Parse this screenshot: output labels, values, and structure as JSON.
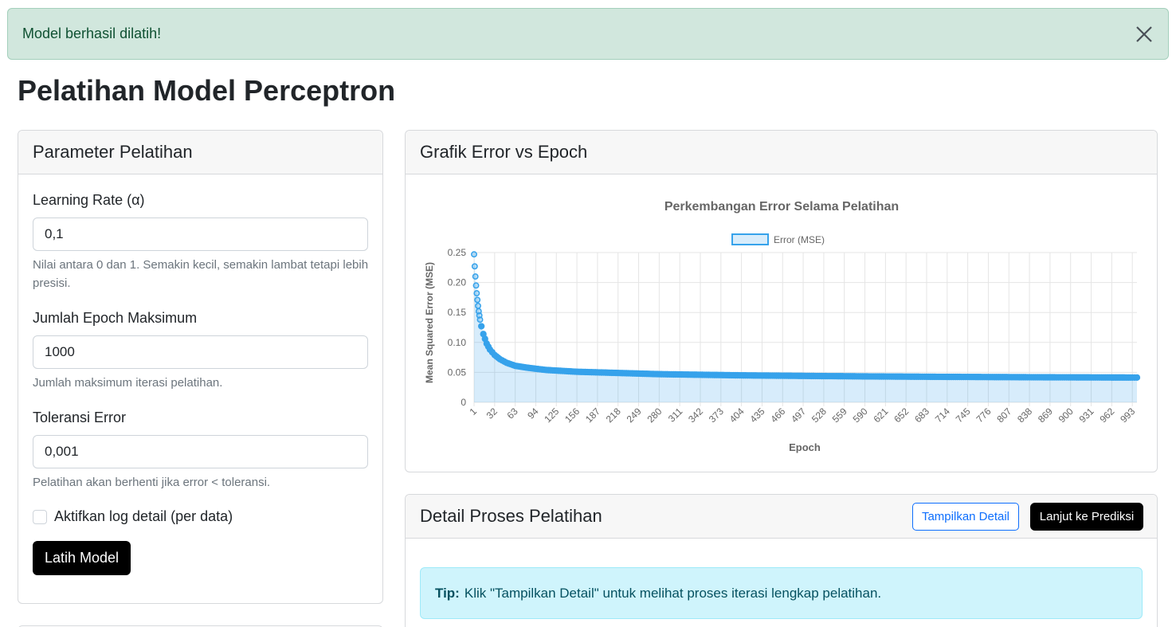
{
  "alert": {
    "message": "Model berhasil dilatih!",
    "close_icon": "close-icon"
  },
  "page": {
    "title": "Pelatihan Model Perceptron"
  },
  "params": {
    "header": "Parameter Pelatihan",
    "learning_rate": {
      "label": "Learning Rate (α)",
      "value": "0,1",
      "help": "Nilai antara 0 dan 1. Semakin kecil, semakin lambat tetapi lebih presisi."
    },
    "max_epoch": {
      "label": "Jumlah Epoch Maksimum",
      "value": "1000",
      "help": "Jumlah maksimum iterasi pelatihan."
    },
    "tolerance": {
      "label": "Toleransi Error",
      "value": "0,001",
      "help": "Pelatihan akan berhenti jika error < toleransi."
    },
    "log_checkbox": {
      "label": "Aktifkan log detail (per data)",
      "checked": false
    },
    "train_button": "Latih Model"
  },
  "chart_card": {
    "header": "Grafik Error vs Epoch"
  },
  "chart_data": {
    "type": "line",
    "title": "Perkembangan Error Selama Pelatihan",
    "xlabel": "Epoch",
    "ylabel": "Mean Squared Error (MSE)",
    "legend": {
      "label": "Error (MSE)",
      "position": "top"
    },
    "series": [
      {
        "name": "Error (MSE)",
        "color": "#36a2eb",
        "fill": "rgba(54,162,235,0.2)",
        "points": [
          [
            1,
            0.247
          ],
          [
            2,
            0.227
          ],
          [
            3,
            0.21
          ],
          [
            4,
            0.195
          ],
          [
            5,
            0.182
          ],
          [
            6,
            0.171
          ],
          [
            7,
            0.161
          ],
          [
            8,
            0.152
          ],
          [
            9,
            0.145
          ],
          [
            10,
            0.138
          ],
          [
            12,
            0.127
          ],
          [
            15,
            0.114
          ],
          [
            20,
            0.098
          ],
          [
            25,
            0.088
          ],
          [
            32,
            0.079
          ],
          [
            40,
            0.072
          ],
          [
            50,
            0.066
          ],
          [
            63,
            0.061
          ],
          [
            80,
            0.058
          ],
          [
            94,
            0.056
          ],
          [
            110,
            0.054
          ],
          [
            125,
            0.053
          ],
          [
            156,
            0.051
          ],
          [
            187,
            0.05
          ],
          [
            218,
            0.049
          ],
          [
            249,
            0.048
          ],
          [
            280,
            0.047
          ],
          [
            311,
            0.0465
          ],
          [
            342,
            0.046
          ],
          [
            373,
            0.0455
          ],
          [
            404,
            0.045
          ],
          [
            435,
            0.0447
          ],
          [
            466,
            0.0444
          ],
          [
            497,
            0.0441
          ],
          [
            528,
            0.0438
          ],
          [
            559,
            0.0436
          ],
          [
            590,
            0.0433
          ],
          [
            621,
            0.0431
          ],
          [
            652,
            0.0429
          ],
          [
            683,
            0.0427
          ],
          [
            714,
            0.0425
          ],
          [
            745,
            0.0424
          ],
          [
            776,
            0.0422
          ],
          [
            807,
            0.0421
          ],
          [
            838,
            0.0419
          ],
          [
            869,
            0.0418
          ],
          [
            900,
            0.0417
          ],
          [
            931,
            0.0416
          ],
          [
            962,
            0.0415
          ],
          [
            993,
            0.0414
          ],
          [
            1000,
            0.0414
          ]
        ]
      }
    ],
    "xlim": [
      1,
      1000
    ],
    "ylim": [
      0,
      0.25
    ],
    "y_ticks": [
      "0.25",
      "0.20",
      "0.15",
      "0.10",
      "0.05",
      "0"
    ],
    "x_ticks": [
      "1",
      "32",
      "63",
      "94",
      "125",
      "156",
      "187",
      "218",
      "249",
      "280",
      "311",
      "342",
      "373",
      "404",
      "435",
      "466",
      "497",
      "528",
      "559",
      "590",
      "621",
      "652",
      "683",
      "714",
      "745",
      "776",
      "807",
      "838",
      "869",
      "900",
      "931",
      "962",
      "993"
    ],
    "grid": true
  },
  "detail_card": {
    "header": "Detail Proses Pelatihan",
    "show_detail_button": "Tampilkan Detail",
    "next_button": "Lanjut ke Prediksi",
    "tip_label": "Tip:",
    "tip_text": "Klik \"Tampilkan Detail\" untuk melihat proses iterasi lengkap pelatihan."
  }
}
